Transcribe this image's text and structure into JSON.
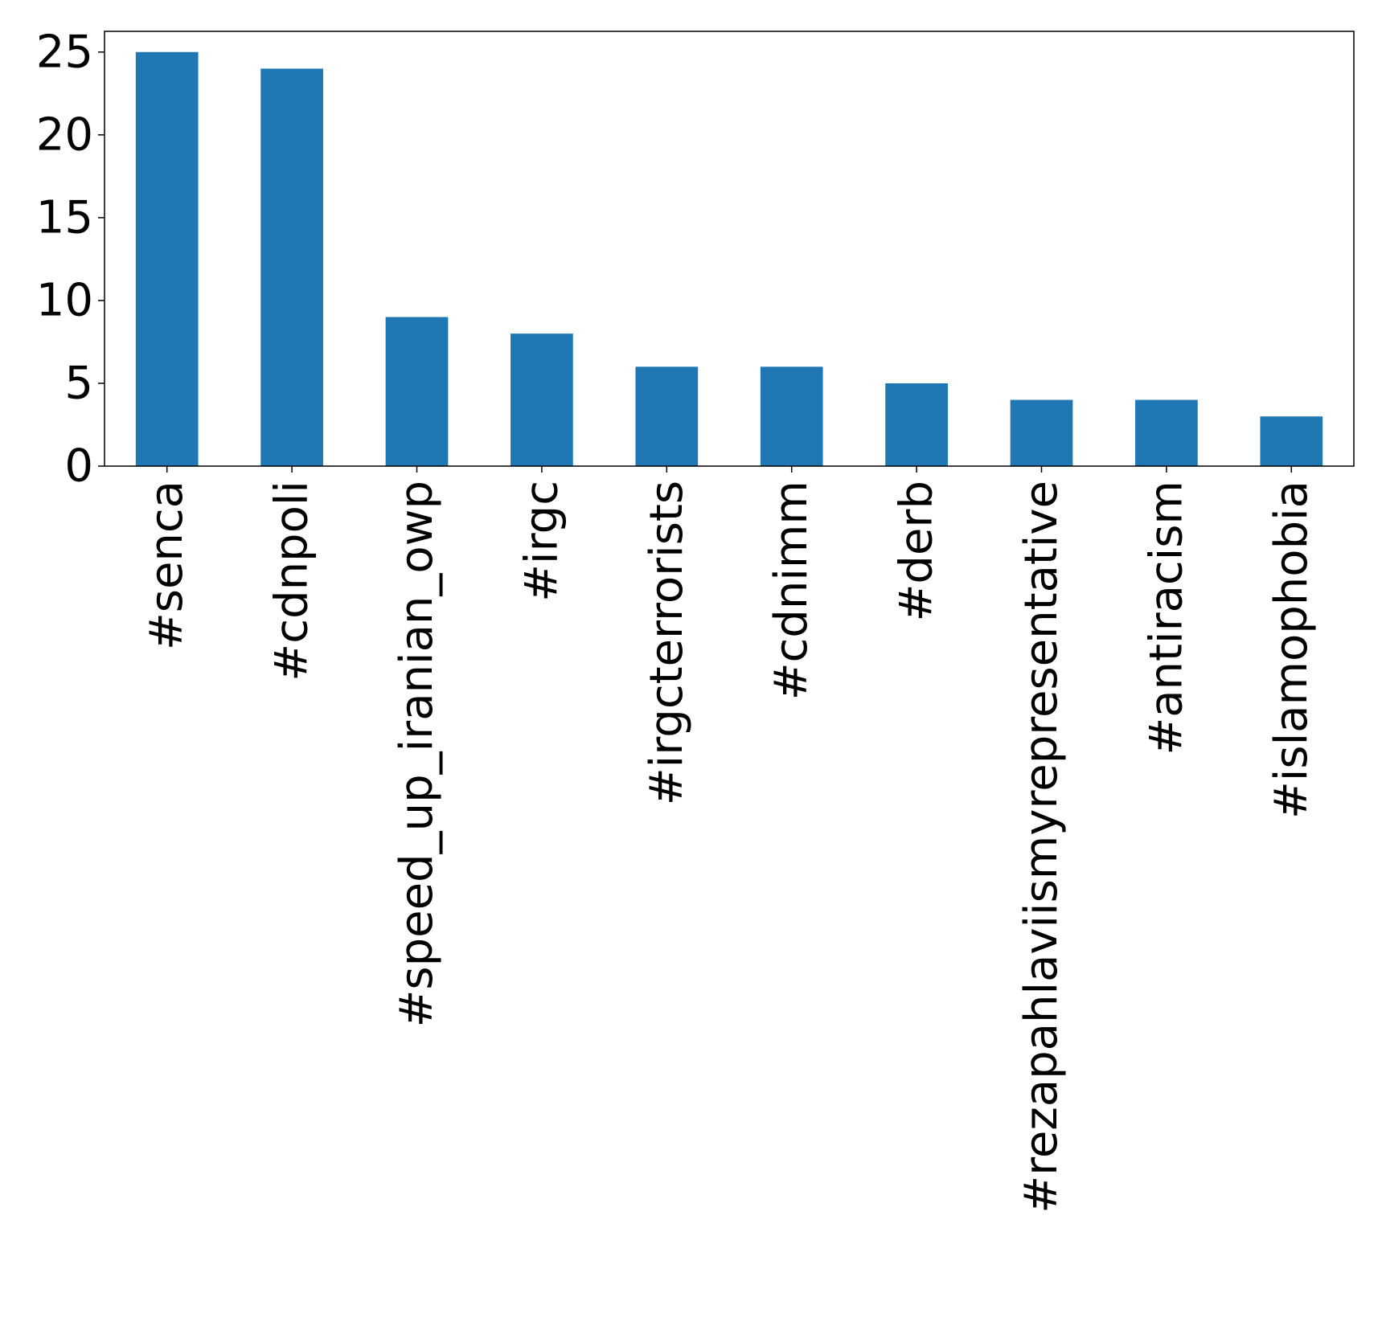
{
  "chart_data": {
    "type": "bar",
    "title": "",
    "xlabel": "",
    "ylabel": "",
    "categories": [
      "#senca",
      "#cdnpoli",
      "#speed_up_iranian_owp",
      "#irgc",
      "#irgcterrorists",
      "#cdnimm",
      "#derb",
      "#rezapahlaviismyrepresentative",
      "#antiracism",
      "#islamophobia"
    ],
    "values": [
      25,
      24,
      9,
      8,
      6,
      6,
      5,
      4,
      4,
      3
    ],
    "ylim": [
      0,
      25
    ],
    "yticks": [
      0,
      5,
      10,
      15,
      20,
      25
    ],
    "grid": false,
    "legend": "none",
    "bar_color": "#1f77b4",
    "axis_color": "#000000",
    "text_color": "#000000",
    "xtick_rotation": "vertical"
  }
}
